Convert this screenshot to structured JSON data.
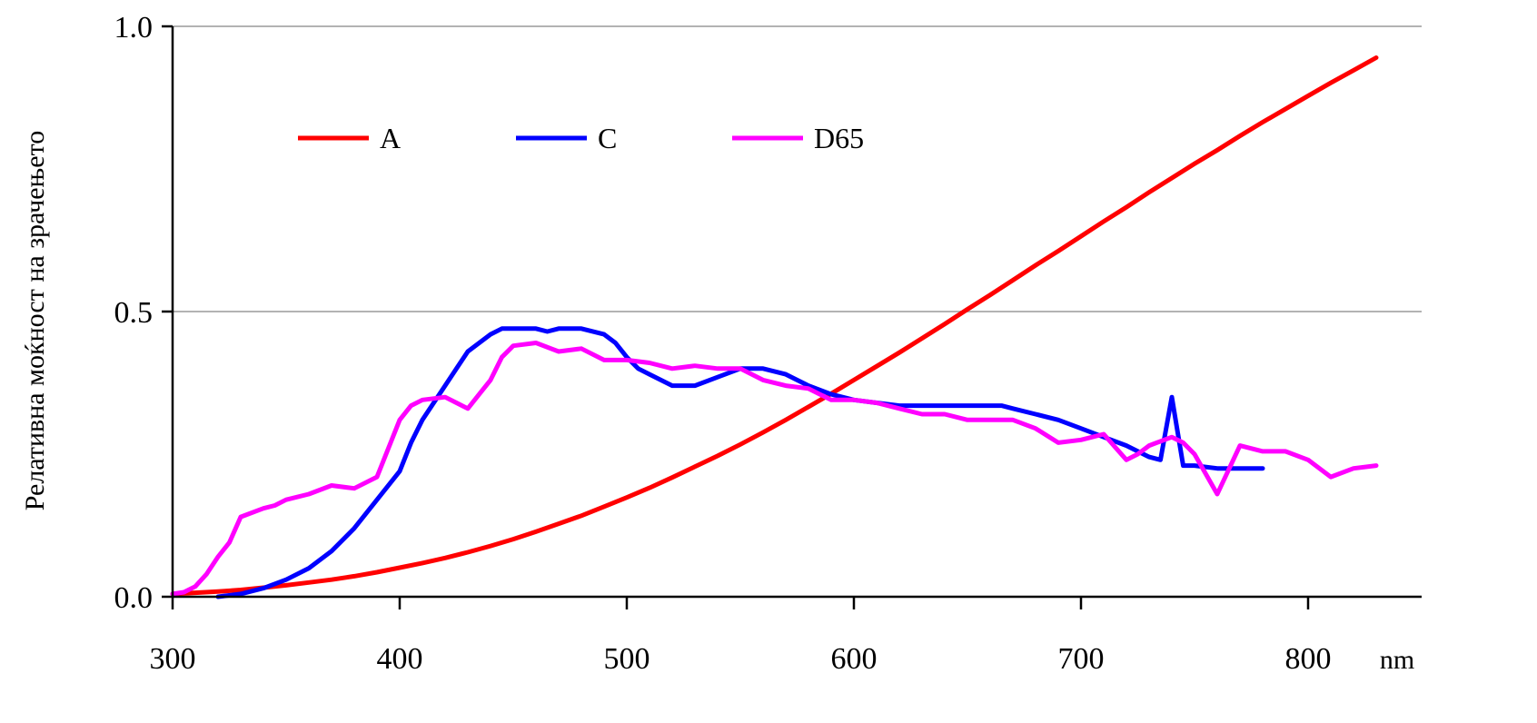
{
  "chart_data": {
    "type": "line",
    "title": "",
    "xlabel": "",
    "x_unit": "nm",
    "ylabel": "Релативна моќност на зрачењето",
    "xlim": [
      300,
      850
    ],
    "ylim": [
      0,
      1
    ],
    "x_ticks": [
      300,
      400,
      500,
      600,
      700,
      800
    ],
    "y_ticks": [
      "0.0",
      "0.5",
      "1.0"
    ],
    "y_tick_values": [
      0,
      0.5,
      1
    ],
    "grid": "horizontal",
    "legend_position": "top-left",
    "series": [
      {
        "name": "A",
        "color": "#ff0000",
        "points": [
          [
            300,
            0.005
          ],
          [
            310,
            0.007
          ],
          [
            320,
            0.009
          ],
          [
            330,
            0.012
          ],
          [
            340,
            0.016
          ],
          [
            350,
            0.02
          ],
          [
            360,
            0.025
          ],
          [
            370,
            0.03
          ],
          [
            380,
            0.036
          ],
          [
            390,
            0.043
          ],
          [
            400,
            0.051
          ],
          [
            410,
            0.059
          ],
          [
            420,
            0.068
          ],
          [
            430,
            0.078
          ],
          [
            440,
            0.089
          ],
          [
            450,
            0.101
          ],
          [
            460,
            0.114
          ],
          [
            470,
            0.128
          ],
          [
            480,
            0.142
          ],
          [
            490,
            0.158
          ],
          [
            500,
            0.174
          ],
          [
            510,
            0.191
          ],
          [
            520,
            0.209
          ],
          [
            530,
            0.228
          ],
          [
            540,
            0.247
          ],
          [
            550,
            0.267
          ],
          [
            560,
            0.288
          ],
          [
            570,
            0.31
          ],
          [
            580,
            0.333
          ],
          [
            590,
            0.356
          ],
          [
            600,
            0.38
          ],
          [
            610,
            0.404
          ],
          [
            620,
            0.428
          ],
          [
            630,
            0.453
          ],
          [
            640,
            0.478
          ],
          [
            650,
            0.504
          ],
          [
            660,
            0.529
          ],
          [
            670,
            0.555
          ],
          [
            680,
            0.581
          ],
          [
            690,
            0.606
          ],
          [
            700,
            0.632
          ],
          [
            710,
            0.658
          ],
          [
            720,
            0.683
          ],
          [
            730,
            0.709
          ],
          [
            740,
            0.734
          ],
          [
            750,
            0.759
          ],
          [
            760,
            0.783
          ],
          [
            770,
            0.808
          ],
          [
            780,
            0.832
          ],
          [
            790,
            0.855
          ],
          [
            800,
            0.878
          ],
          [
            810,
            0.901
          ],
          [
            820,
            0.923
          ],
          [
            830,
            0.945
          ]
        ]
      },
      {
        "name": "C",
        "color": "#0000ff",
        "points": [
          [
            320,
            0.0
          ],
          [
            330,
            0.005
          ],
          [
            340,
            0.015
          ],
          [
            350,
            0.03
          ],
          [
            360,
            0.05
          ],
          [
            370,
            0.08
          ],
          [
            380,
            0.12
          ],
          [
            390,
            0.17
          ],
          [
            400,
            0.22
          ],
          [
            405,
            0.27
          ],
          [
            410,
            0.31
          ],
          [
            420,
            0.37
          ],
          [
            425,
            0.4
          ],
          [
            430,
            0.43
          ],
          [
            440,
            0.46
          ],
          [
            445,
            0.47
          ],
          [
            450,
            0.47
          ],
          [
            460,
            0.47
          ],
          [
            465,
            0.465
          ],
          [
            470,
            0.47
          ],
          [
            480,
            0.47
          ],
          [
            490,
            0.46
          ],
          [
            495,
            0.445
          ],
          [
            500,
            0.42
          ],
          [
            505,
            0.4
          ],
          [
            510,
            0.39
          ],
          [
            520,
            0.37
          ],
          [
            530,
            0.37
          ],
          [
            540,
            0.385
          ],
          [
            550,
            0.4
          ],
          [
            560,
            0.4
          ],
          [
            570,
            0.39
          ],
          [
            575,
            0.38
          ],
          [
            580,
            0.37
          ],
          [
            590,
            0.355
          ],
          [
            600,
            0.345
          ],
          [
            610,
            0.34
          ],
          [
            620,
            0.335
          ],
          [
            640,
            0.335
          ],
          [
            660,
            0.335
          ],
          [
            665,
            0.335
          ],
          [
            670,
            0.33
          ],
          [
            680,
            0.32
          ],
          [
            690,
            0.31
          ],
          [
            700,
            0.295
          ],
          [
            710,
            0.28
          ],
          [
            720,
            0.265
          ],
          [
            730,
            0.245
          ],
          [
            735,
            0.24
          ],
          [
            740,
            0.35
          ],
          [
            745,
            0.23
          ],
          [
            750,
            0.23
          ],
          [
            760,
            0.225
          ],
          [
            770,
            0.225
          ],
          [
            780,
            0.225
          ]
        ]
      },
      {
        "name": "D65",
        "color": "#ff00ff",
        "points": [
          [
            300,
            0.005
          ],
          [
            305,
            0.008
          ],
          [
            310,
            0.018
          ],
          [
            315,
            0.04
          ],
          [
            320,
            0.07
          ],
          [
            325,
            0.095
          ],
          [
            330,
            0.14
          ],
          [
            340,
            0.155
          ],
          [
            345,
            0.16
          ],
          [
            350,
            0.17
          ],
          [
            360,
            0.18
          ],
          [
            370,
            0.195
          ],
          [
            380,
            0.19
          ],
          [
            390,
            0.21
          ],
          [
            400,
            0.31
          ],
          [
            405,
            0.335
          ],
          [
            410,
            0.345
          ],
          [
            420,
            0.35
          ],
          [
            425,
            0.34
          ],
          [
            430,
            0.33
          ],
          [
            435,
            0.355
          ],
          [
            440,
            0.38
          ],
          [
            445,
            0.42
          ],
          [
            450,
            0.44
          ],
          [
            460,
            0.445
          ],
          [
            470,
            0.43
          ],
          [
            480,
            0.435
          ],
          [
            490,
            0.415
          ],
          [
            500,
            0.415
          ],
          [
            510,
            0.41
          ],
          [
            520,
            0.4
          ],
          [
            530,
            0.405
          ],
          [
            540,
            0.4
          ],
          [
            550,
            0.4
          ],
          [
            560,
            0.38
          ],
          [
            570,
            0.37
          ],
          [
            580,
            0.365
          ],
          [
            590,
            0.345
          ],
          [
            600,
            0.345
          ],
          [
            610,
            0.34
          ],
          [
            620,
            0.33
          ],
          [
            630,
            0.32
          ],
          [
            640,
            0.32
          ],
          [
            650,
            0.31
          ],
          [
            660,
            0.31
          ],
          [
            670,
            0.31
          ],
          [
            680,
            0.295
          ],
          [
            690,
            0.27
          ],
          [
            700,
            0.275
          ],
          [
            710,
            0.285
          ],
          [
            720,
            0.24
          ],
          [
            725,
            0.25
          ],
          [
            730,
            0.265
          ],
          [
            740,
            0.28
          ],
          [
            745,
            0.27
          ],
          [
            750,
            0.25
          ],
          [
            760,
            0.18
          ],
          [
            770,
            0.265
          ],
          [
            780,
            0.255
          ],
          [
            790,
            0.255
          ],
          [
            800,
            0.24
          ],
          [
            810,
            0.21
          ],
          [
            820,
            0.225
          ],
          [
            830,
            0.23
          ]
        ]
      }
    ]
  }
}
